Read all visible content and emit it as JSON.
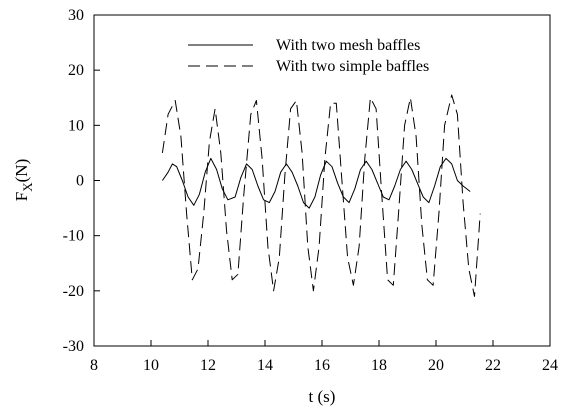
{
  "chart_data": {
    "type": "line",
    "xlabel": "t (s)",
    "ylabel_main": "F",
    "ylabel_sub": "X",
    "ylabel_suffix": "(N)",
    "xlim": [
      8,
      24
    ],
    "ylim": [
      -30,
      30
    ],
    "xticks": [
      8,
      10,
      12,
      14,
      16,
      18,
      20,
      22,
      24
    ],
    "yticks": [
      -30,
      -20,
      -10,
      0,
      10,
      20,
      30
    ],
    "grid": false,
    "legend_position": "top-center",
    "series": [
      {
        "name": "With two mesh baffles",
        "style": "solid",
        "color": "#000000",
        "x": [
          10.4,
          10.6,
          10.75,
          10.9,
          11.1,
          11.3,
          11.5,
          11.7,
          11.9,
          12.1,
          12.3,
          12.5,
          12.7,
          12.95,
          13.15,
          13.35,
          13.55,
          13.75,
          13.95,
          14.15,
          14.35,
          14.55,
          14.75,
          14.95,
          15.15,
          15.35,
          15.55,
          15.75,
          15.95,
          16.15,
          16.35,
          16.55,
          16.75,
          16.95,
          17.15,
          17.35,
          17.55,
          17.75,
          17.95,
          18.15,
          18.35,
          18.55,
          18.75,
          18.95,
          19.15,
          19.35,
          19.55,
          19.75,
          19.95,
          20.15,
          20.35,
          20.55,
          20.75,
          20.95,
          21.2
        ],
        "y": [
          0,
          1.5,
          3,
          2.5,
          0,
          -3,
          -4.5,
          -2.5,
          1.5,
          4,
          2,
          -1.5,
          -3.5,
          -3,
          0.5,
          3,
          2,
          -1,
          -3.5,
          -4,
          -2,
          1.5,
          3,
          1.5,
          -1,
          -4,
          -5,
          -3,
          1,
          3.5,
          2.5,
          -0.5,
          -3,
          -4,
          -1.5,
          2,
          3.5,
          2,
          -0.5,
          -3,
          -3.5,
          -1,
          2,
          3.5,
          2,
          -0.5,
          -3,
          -4,
          -1,
          2.5,
          4,
          3,
          0,
          -1,
          -2
        ]
      },
      {
        "name": "With two simple baffles",
        "style": "dashed",
        "color": "#000000",
        "x": [
          10.4,
          10.6,
          10.85,
          11.05,
          11.25,
          11.45,
          11.65,
          11.85,
          12.05,
          12.25,
          12.45,
          12.65,
          12.85,
          13.05,
          13.25,
          13.5,
          13.7,
          13.9,
          14.1,
          14.3,
          14.5,
          14.7,
          14.9,
          15.1,
          15.3,
          15.5,
          15.7,
          15.9,
          16.1,
          16.3,
          16.5,
          16.7,
          16.9,
          17.1,
          17.3,
          17.5,
          17.7,
          17.9,
          18.1,
          18.3,
          18.5,
          18.7,
          18.9,
          19.1,
          19.3,
          19.5,
          19.7,
          19.9,
          20.1,
          20.3,
          20.55,
          20.75,
          20.95,
          21.15,
          21.35,
          21.55
        ],
        "y": [
          5,
          12,
          14.5,
          8,
          -6,
          -18,
          -16,
          -6,
          7,
          13,
          5,
          -9,
          -18,
          -17,
          -3,
          12,
          14.5,
          4,
          -12,
          -20,
          -14,
          1,
          13,
          14.5,
          5,
          -12,
          -20,
          -12,
          4,
          14,
          14,
          0,
          -14,
          -19,
          -12,
          4,
          15,
          13,
          -3,
          -18,
          -19,
          -5,
          10,
          15,
          8,
          -8,
          -18,
          -19,
          -6,
          10,
          15.5,
          12,
          -4,
          -16,
          -21,
          -6
        ]
      }
    ]
  }
}
